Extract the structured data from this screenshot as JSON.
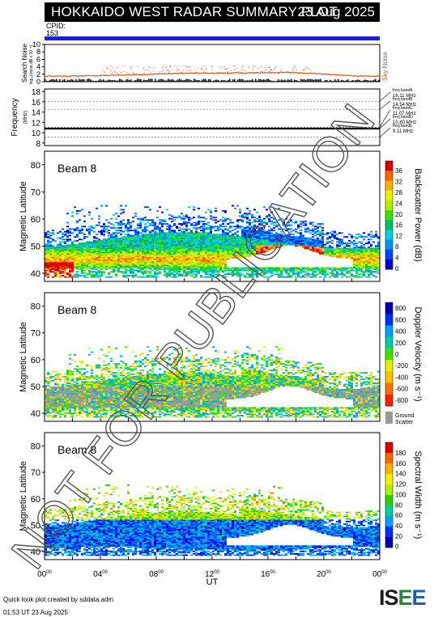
{
  "header": {
    "title": "HOKKAIDO WEST RADAR SUMMARY PLOT",
    "date": "23 Aug 2025",
    "cpid_label": "CPID:",
    "cpid_value": "153"
  },
  "noise_panel": {
    "ylabel_main": "Search Noise",
    "ylabel_sub": "log₁₀(noise,dB x 10⁻⁶)",
    "ticks": [
      0,
      2,
      4,
      6,
      8,
      10
    ],
    "side_label": "Sky Noise",
    "ylim": [
      0,
      10
    ]
  },
  "freq_panel": {
    "ylabel": "Frequency",
    "unit": "(MHz)",
    "ticks": [
      8,
      10,
      12,
      14,
      16,
      18
    ],
    "ylim": [
      7.5,
      18.5
    ],
    "bands": [
      {
        "name": "freq bandA",
        "value": "16.11 MHz",
        "f": 16.11
      },
      {
        "name": "freq bandB",
        "value": "14.54 MHz",
        "f": 14.54
      },
      {
        "name": "freq bandC",
        "value": "11.07 MHz",
        "f": 11.07
      },
      {
        "name": "freq bandD",
        "value": "10.80 MHz",
        "f": 10.8
      },
      {
        "name": "freq bandE",
        "value": "9.11 MHz",
        "f": 9.11
      }
    ],
    "operating_freq": 10.8
  },
  "chart_data": [
    {
      "type": "heatmap",
      "beam_label": "Beam  8",
      "ylabel": "Magnetic Latitude",
      "yticks": [
        40,
        50,
        60,
        70,
        80
      ],
      "ylim": [
        37,
        85
      ],
      "colorbar_label": "Backscatter Power (dB)",
      "colorbar_ticks": [
        "0",
        "4",
        "8",
        "12",
        "16",
        "20",
        "24",
        "28",
        "32",
        "36"
      ],
      "colors": [
        "#0000cc",
        "#0040ff",
        "#0090ff",
        "#00d0e0",
        "#00c060",
        "#40e000",
        "#b0f000",
        "#f0f000",
        "#ffb000",
        "#ff6000",
        "#e00000"
      ],
      "scheme": "power"
    },
    {
      "type": "heatmap",
      "beam_label": "Beam  8",
      "ylabel": "Magnetic Latitude",
      "yticks": [
        40,
        50,
        60,
        70,
        80
      ],
      "ylim": [
        37,
        85
      ],
      "colorbar_label": "Doppler Velocity (m s⁻¹)",
      "colorbar_ticks": [
        "800",
        "600",
        "400",
        "200",
        "0",
        "-200",
        "-400",
        "-600",
        "-800"
      ],
      "colors": [
        "#0000b0",
        "#0030ff",
        "#00a0ff",
        "#00d0a0",
        "#40e000",
        "#e0f000",
        "#ffc000",
        "#ff7000",
        "#ff2000"
      ],
      "ground_label": "Ground",
      "scatter_label": "Scatter",
      "ground_color": "#9a9a9a",
      "scheme": "velocity"
    },
    {
      "type": "heatmap",
      "beam_label": "Beam  8",
      "ylabel": "Magnetic Latitude",
      "yticks": [
        40,
        50,
        60,
        70,
        80
      ],
      "ylim": [
        37,
        85
      ],
      "colorbar_label": "Spectral Width (m s⁻¹)",
      "colorbar_ticks": [
        "0",
        "20",
        "40",
        "60",
        "80",
        "100",
        "120",
        "140",
        "160",
        "180"
      ],
      "colors": [
        "#0000b0",
        "#0030ff",
        "#00a0ff",
        "#00d0a0",
        "#30d000",
        "#b0f000",
        "#f0f000",
        "#ffb000",
        "#ff6000",
        "#e00000"
      ],
      "scheme": "width"
    }
  ],
  "xaxis": {
    "ticks": [
      "00",
      "04",
      "08",
      "12",
      "16",
      "20",
      "00"
    ],
    "tick_sup": "00",
    "label": "UT"
  },
  "watermark": "NOT FOR PUBLICATION",
  "footer": {
    "created": "Quick look plot created by sddata.adm",
    "time": "01:53 UT 23 Aug 2025"
  },
  "logo": {
    "text": "ISEE"
  }
}
